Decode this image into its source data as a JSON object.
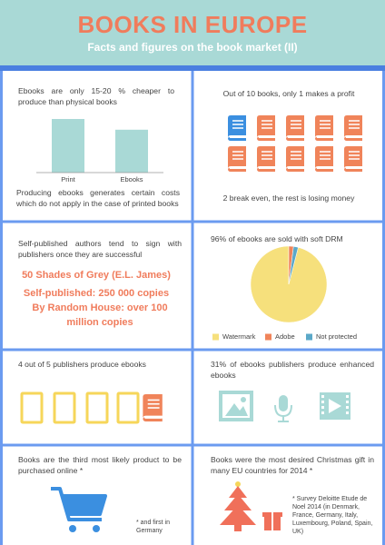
{
  "header": {
    "title": "BOOKS IN EUROPE",
    "subtitle": "Facts and figures on the book market (II)"
  },
  "panels": [
    {
      "text": "Ebooks are only 15-20 % cheaper to produce than physical books",
      "caption": "Producing ebooks generates certain costs which do not apply in the case of printed books"
    },
    {
      "text": "Out of 10 books, only 1 makes a profit",
      "caption": "2 break even, the rest is losing money"
    },
    {
      "text": "Self-published authors tend to sign with publishers once they are successful",
      "highlights": [
        "50 Shades of Grey (E.L. James)",
        "Self-published: 250 000 copies",
        "By Random House: over 100 million copies"
      ]
    },
    {
      "text": "96% of ebooks are sold with soft DRM"
    },
    {
      "text": "4 out of 5 publishers produce ebooks"
    },
    {
      "text": "31% of ebooks publishers produce enhanced ebooks"
    },
    {
      "text": "Books are the third most likely product to be purchased online *",
      "note": "* and first in Germany"
    },
    {
      "text": "Books were the most desired Christmas gift in many EU countries for 2014 *",
      "note": "* Survey Deloitte Etude de Noel 2014 (in Denmark, France, Germany, Italy, Luxembourg, Poland, Spain, UK)"
    }
  ],
  "chart_data": [
    {
      "type": "bar",
      "categories": [
        "Print",
        "Ebooks"
      ],
      "values": [
        100,
        80
      ],
      "color": "#a9d9d6"
    },
    {
      "type": "pie",
      "categories": [
        "Watermark",
        "Adobe",
        "Not protected"
      ],
      "values": [
        96,
        2,
        2
      ],
      "colors": [
        "#f6e07c",
        "#f0845a",
        "#5ba8c8"
      ],
      "legend": "bottom"
    }
  ]
}
